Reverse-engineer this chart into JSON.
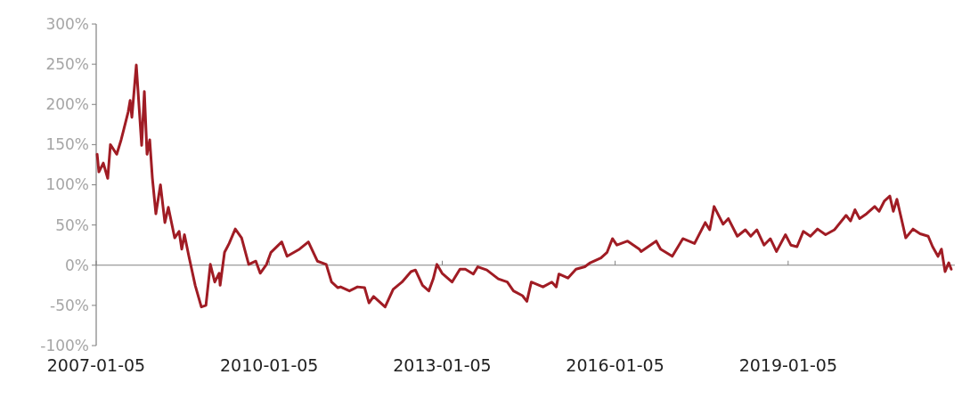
{
  "chart_data": {
    "type": "line",
    "xlim": [
      "2007-01-05",
      "2021-11-26"
    ],
    "ylim": [
      -100,
      300
    ],
    "xticks": [
      "2007-01-05",
      "2010-01-05",
      "2013-01-05",
      "2016-01-05",
      "2019-01-05"
    ],
    "yticks": [
      {
        "value": -100,
        "label": "-100%"
      },
      {
        "value": -50,
        "label": "-50%"
      },
      {
        "value": 0,
        "label": "0%"
      },
      {
        "value": 50,
        "label": "50%"
      },
      {
        "value": 100,
        "label": "100%"
      },
      {
        "value": 150,
        "label": "150%"
      },
      {
        "value": 200,
        "label": "200%"
      },
      {
        "value": 250,
        "label": "250%"
      },
      {
        "value": 300,
        "label": "300%"
      }
    ],
    "marker": "none",
    "line_style": "solid",
    "series": [
      {
        "color": "#a01c24",
        "x": [
          "2007-01-11",
          "2007-01-22",
          "2007-02-19",
          "2007-03-19",
          "2007-04-05",
          "2007-05-15",
          "2007-06-12",
          "2007-06-29",
          "2007-07-27",
          "2007-08-08",
          "2007-08-19",
          "2007-09-16",
          "2007-10-20",
          "2007-11-06",
          "2007-11-23",
          "2007-12-10",
          "2007-12-27",
          "2008-01-18",
          "2008-02-16",
          "2008-03-15",
          "2008-04-06",
          "2008-05-16",
          "2008-06-13",
          "2008-06-30",
          "2008-07-17",
          "2008-08-14",
          "2008-09-23",
          "2008-11-01",
          "2008-11-30",
          "2008-12-28",
          "2009-01-25",
          "2009-02-22",
          "2009-02-28",
          "2009-03-28",
          "2009-04-26",
          "2009-06-04",
          "2009-07-14",
          "2009-08-28",
          "2009-10-12",
          "2009-11-09",
          "2009-12-19",
          "2010-01-16",
          "2010-03-25",
          "2010-04-28",
          "2010-07-16",
          "2010-09-10",
          "2010-11-06",
          "2011-01-01",
          "2011-02-04",
          "2011-03-16",
          "2011-04-02",
          "2011-05-28",
          "2011-07-18",
          "2011-09-01",
          "2011-09-29",
          "2011-10-28",
          "2012-01-09",
          "2012-02-29",
          "2012-04-25",
          "2012-06-21",
          "2012-07-19",
          "2012-09-02",
          "2012-10-12",
          "2012-11-09",
          "2012-12-02",
          "2013-01-04",
          "2013-03-08",
          "2013-04-27",
          "2013-05-31",
          "2013-07-21",
          "2013-08-18",
          "2013-10-14",
          "2013-12-26",
          "2014-02-21",
          "2014-04-01",
          "2014-05-28",
          "2014-06-25",
          "2014-07-23",
          "2014-10-05",
          "2014-11-30",
          "2014-12-28",
          "2015-01-14",
          "2015-03-12",
          "2015-05-02",
          "2015-06-27",
          "2015-07-31",
          "2015-10-07",
          "2015-11-15",
          "2015-12-19",
          "2016-01-16",
          "2016-03-24",
          "2016-06-06",
          "2016-06-17",
          "2016-09-21",
          "2016-10-19",
          "2017-01-01",
          "2017-03-09",
          "2017-05-22",
          "2017-07-29",
          "2017-08-26",
          "2017-09-23",
          "2017-11-19",
          "2017-12-22",
          "2018-02-17",
          "2018-04-09",
          "2018-05-13",
          "2018-06-21",
          "2018-08-05",
          "2018-09-14",
          "2018-10-23",
          "2018-12-19",
          "2019-01-22",
          "2019-03-02",
          "2019-04-11",
          "2019-05-26",
          "2019-07-10",
          "2019-08-30",
          "2019-10-25",
          "2020-01-07",
          "2020-02-04",
          "2020-03-03",
          "2020-04-01",
          "2020-05-16",
          "2020-07-06",
          "2020-08-03",
          "2020-09-06",
          "2020-10-10",
          "2020-11-01",
          "2020-11-24",
          "2020-12-22",
          "2021-01-19",
          "2021-03-06",
          "2021-04-20",
          "2021-06-10",
          "2021-07-08",
          "2021-08-11",
          "2021-09-02",
          "2021-09-25",
          "2021-10-18",
          "2021-11-03"
        ],
        "values": [
          138,
          116,
          127,
          108,
          150,
          138,
          156,
          169,
          191,
          205,
          184,
          249,
          149,
          216,
          138,
          156,
          108,
          64,
          100,
          53,
          72,
          34,
          42,
          20,
          38,
          11,
          -25,
          -52,
          -50,
          1,
          -21,
          -10,
          -25,
          16,
          27,
          45,
          34,
          1,
          5,
          -10,
          1,
          16,
          29,
          11,
          20,
          29,
          5,
          1,
          -21,
          -28,
          -27,
          -32,
          -27,
          -28,
          -47,
          -39,
          -52,
          -30,
          -21,
          -8,
          -6,
          -25,
          -32,
          -17,
          1,
          -10,
          -21,
          -5,
          -5,
          -11,
          -2,
          -6,
          -17,
          -21,
          -32,
          -38,
          -45,
          -21,
          -27,
          -21,
          -27,
          -11,
          -16,
          -5,
          -2,
          3,
          9,
          16,
          33,
          25,
          30,
          20,
          17,
          30,
          20,
          11,
          33,
          27,
          53,
          44,
          73,
          51,
          58,
          36,
          44,
          36,
          44,
          25,
          33,
          17,
          38,
          25,
          23,
          42,
          36,
          45,
          38,
          44,
          62,
          55,
          69,
          58,
          64,
          73,
          67,
          80,
          86,
          67,
          82,
          58,
          34,
          45,
          39,
          36,
          23,
          11,
          20,
          -8,
          3,
          -5
        ]
      }
    ]
  }
}
